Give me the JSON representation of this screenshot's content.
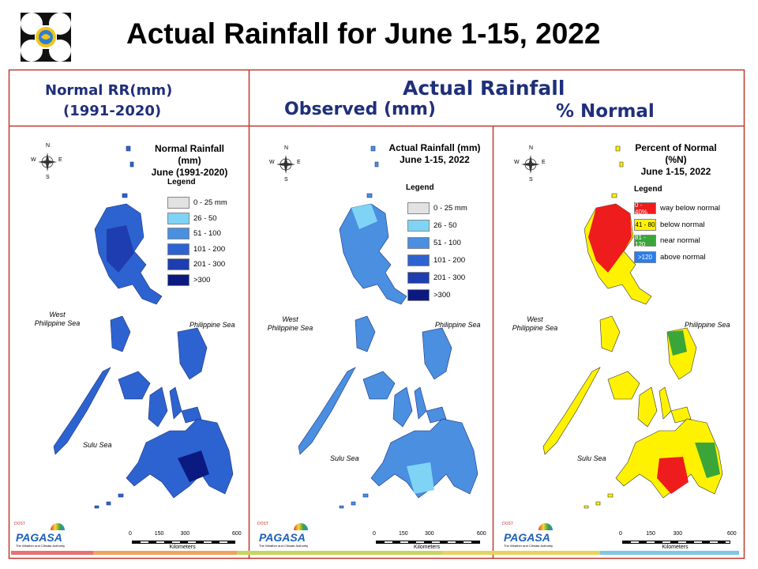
{
  "title": "Actual Rainfall for June 1-15, 2022",
  "headers": {
    "normal_line1": "Normal RR(mm)",
    "normal_line2": "(1991-2020)",
    "actual": "Actual Rainfall",
    "observed": "Observed (mm)",
    "percent": "% Normal"
  },
  "panels": [
    {
      "title_line1": "Normal Rainfall (mm)",
      "title_line2": "June (1991-2020)",
      "legend_title": "Legend",
      "legend": [
        {
          "label": "0 - 25 mm",
          "color": "#e2e2e2"
        },
        {
          "label": "26 - 50",
          "color": "#7fd4f5"
        },
        {
          "label": "51 - 100",
          "color": "#4a8fe0"
        },
        {
          "label": "101 - 200",
          "color": "#2d63d0"
        },
        {
          "label": "201 - 300",
          "color": "#1e3db0"
        },
        {
          "label": ">300",
          "color": "#0b1a80"
        }
      ],
      "sea_west_line1": "West",
      "sea_west_line2": "Philippine Sea",
      "sea_east": "Philippine Sea",
      "sea_south": "Sulu Sea"
    },
    {
      "title_line1": "Actual Rainfall (mm)",
      "title_line2": "June 1-15, 2022",
      "legend_title": "Legend",
      "legend": [
        {
          "label": "0 - 25 mm",
          "color": "#e2e2e2"
        },
        {
          "label": "26 - 50",
          "color": "#7fd4f5"
        },
        {
          "label": "51 - 100",
          "color": "#4a8fe0"
        },
        {
          "label": "101 - 200",
          "color": "#2d63d0"
        },
        {
          "label": "201 - 300",
          "color": "#1e3db0"
        },
        {
          "label": ">300",
          "color": "#0b1a80"
        }
      ],
      "sea_west_line1": "West",
      "sea_west_line2": "Philippine Sea",
      "sea_east": "Philippine Sea",
      "sea_south": "Sulu Sea"
    },
    {
      "title_line1": "Percent of Normal (%N)",
      "title_line2": "June 1-15, 2022",
      "legend_title": "Legend",
      "legend": [
        {
          "swatch": "0 - 40%",
          "label": "way below normal",
          "color": "#ee1c1c"
        },
        {
          "swatch": "41 - 80",
          "label": "below normal",
          "color": "#fff200"
        },
        {
          "swatch": "81 - 120",
          "label": "near normal",
          "color": "#3aa63a"
        },
        {
          "swatch": ">120",
          "label": "above normal",
          "color": "#2b7de9"
        }
      ],
      "sea_west_line1": "West",
      "sea_west_line2": "Philippine Sea",
      "sea_east": "Philippine Sea",
      "sea_south": "Sulu Sea"
    }
  ],
  "compass": {
    "n": "N",
    "s": "S",
    "e": "E",
    "w": "W"
  },
  "scale": {
    "ticks": [
      "0",
      "150",
      "300",
      "600"
    ],
    "unit": "Kilometers"
  },
  "logo": {
    "top": "DOST",
    "mid": "PAGASA",
    "tagline": "The Weather and Climate Authority"
  },
  "colors": {
    "frame": "#c0392b",
    "header_text": "#1f2f7a",
    "footer_stripe": [
      "#e57373",
      "#f0a35e",
      "#c5d55e",
      "#e8d25e",
      "#7ec8e3"
    ]
  }
}
